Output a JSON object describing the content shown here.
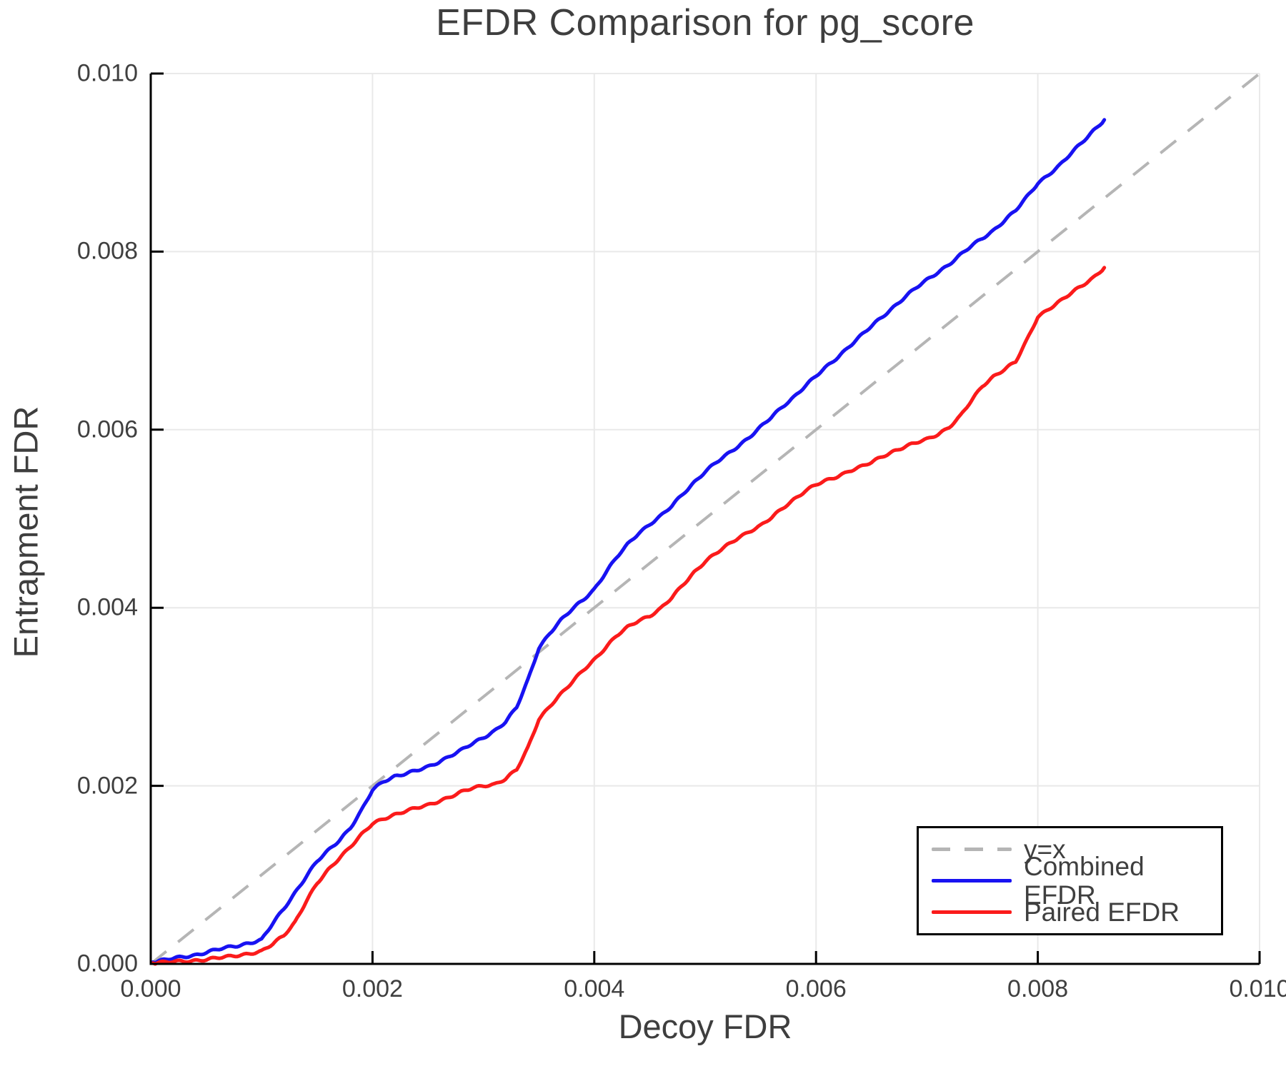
{
  "chart_data": {
    "type": "line",
    "title": "EFDR Comparison for pg_score",
    "xlabel": "Decoy FDR",
    "ylabel": "Entrapment FDR",
    "xlim": [
      0.0,
      0.01
    ],
    "ylim": [
      0.0,
      0.01
    ],
    "grid": true,
    "tick_direction": "in",
    "x_ticks": {
      "values": [
        0.0,
        0.002,
        0.004,
        0.006,
        0.008,
        0.01
      ],
      "labels": [
        "0.000",
        "0.002",
        "0.004",
        "0.006",
        "0.008",
        "0.010"
      ]
    },
    "y_ticks": {
      "values": [
        0.0,
        0.002,
        0.004,
        0.006,
        0.008,
        0.01
      ],
      "labels": [
        "0.000",
        "0.002",
        "0.004",
        "0.006",
        "0.008",
        "0.010"
      ]
    },
    "colors": {
      "diagonal": "#b5b5b5",
      "combined": "#1812f2",
      "paired": "#fb1b1b",
      "grid": "#e9e9e9",
      "axis": "#000000",
      "text": "#3f3f3f"
    },
    "legend": {
      "position": "lower right",
      "entries": [
        {
          "label": "y=x",
          "color": "#b5b5b5",
          "dashed": true
        },
        {
          "label": "Combined EFDR",
          "color": "#1812f2",
          "dashed": false
        },
        {
          "label": "Paired EFDR",
          "color": "#fb1b1b",
          "dashed": false
        }
      ]
    },
    "series": [
      {
        "name": "y=x",
        "style": "dashed",
        "color": "#b5b5b5",
        "points": [
          [
            0.0,
            0.0
          ],
          [
            0.01,
            0.01
          ]
        ]
      },
      {
        "name": "Combined EFDR",
        "style": "solid",
        "color": "#1812f2",
        "points": [
          [
            2e-05,
            2e-05
          ],
          [
            0.0002,
            6e-05
          ],
          [
            0.0004,
            0.0001
          ],
          [
            0.0006,
            0.00016
          ],
          [
            0.0008,
            0.00021
          ],
          [
            0.001,
            0.00027
          ],
          [
            0.0011,
            0.00045
          ],
          [
            0.0012,
            0.00062
          ],
          [
            0.0013,
            0.0008
          ],
          [
            0.0014,
            0.00098
          ],
          [
            0.0015,
            0.00115
          ],
          [
            0.0016,
            0.00127
          ],
          [
            0.0017,
            0.00139
          ],
          [
            0.0018,
            0.00153
          ],
          [
            0.0019,
            0.00172
          ],
          [
            0.002,
            0.00195
          ],
          [
            0.0021,
            0.00205
          ],
          [
            0.0022,
            0.00211
          ],
          [
            0.0023,
            0.00214
          ],
          [
            0.0024,
            0.00217
          ],
          [
            0.0025,
            0.00221
          ],
          [
            0.0026,
            0.00227
          ],
          [
            0.0027,
            0.00234
          ],
          [
            0.0028,
            0.0024
          ],
          [
            0.0029,
            0.00247
          ],
          [
            0.003,
            0.00254
          ],
          [
            0.0031,
            0.00262
          ],
          [
            0.0032,
            0.00272
          ],
          [
            0.0033,
            0.00288
          ],
          [
            0.0034,
            0.00318
          ],
          [
            0.0035,
            0.00355
          ],
          [
            0.0036,
            0.00372
          ],
          [
            0.0037,
            0.00386
          ],
          [
            0.0038,
            0.00398
          ],
          [
            0.0039,
            0.00409
          ],
          [
            0.004,
            0.00421
          ],
          [
            0.0041,
            0.00439
          ],
          [
            0.0042,
            0.00456
          ],
          [
            0.0043,
            0.00471
          ],
          [
            0.0044,
            0.00484
          ],
          [
            0.0045,
            0.00494
          ],
          [
            0.0046,
            0.00503
          ],
          [
            0.0047,
            0.00514
          ],
          [
            0.0048,
            0.00528
          ],
          [
            0.0049,
            0.00541
          ],
          [
            0.005,
            0.00553
          ],
          [
            0.0051,
            0.00563
          ],
          [
            0.0052,
            0.00572
          ],
          [
            0.0053,
            0.00582
          ],
          [
            0.0054,
            0.00592
          ],
          [
            0.0055,
            0.00603
          ],
          [
            0.0056,
            0.00614
          ],
          [
            0.0057,
            0.00626
          ],
          [
            0.0058,
            0.00637
          ],
          [
            0.0059,
            0.00649
          ],
          [
            0.006,
            0.0066
          ],
          [
            0.0061,
            0.00671
          ],
          [
            0.0062,
            0.00682
          ],
          [
            0.0063,
            0.00694
          ],
          [
            0.0064,
            0.00705
          ],
          [
            0.0065,
            0.00716
          ],
          [
            0.0066,
            0.00727
          ],
          [
            0.0067,
            0.00738
          ],
          [
            0.0068,
            0.00749
          ],
          [
            0.0069,
            0.00759
          ],
          [
            0.007,
            0.00768
          ],
          [
            0.0071,
            0.00777
          ],
          [
            0.0072,
            0.00786
          ],
          [
            0.0073,
            0.00796
          ],
          [
            0.0074,
            0.00806
          ],
          [
            0.0075,
            0.00815
          ],
          [
            0.0076,
            0.00824
          ],
          [
            0.0077,
            0.00835
          ],
          [
            0.0078,
            0.00846
          ],
          [
            0.0079,
            0.00861
          ],
          [
            0.008,
            0.00877
          ],
          [
            0.0081,
            0.00887
          ],
          [
            0.0082,
            0.00897
          ],
          [
            0.0083,
            0.0091
          ],
          [
            0.0084,
            0.00923
          ],
          [
            0.0085,
            0.00936
          ],
          [
            0.0086,
            0.00948
          ]
        ]
      },
      {
        "name": "Paired EFDR",
        "style": "solid",
        "color": "#fb1b1b",
        "points": [
          [
            2e-05,
            1e-05
          ],
          [
            0.0003,
            3e-05
          ],
          [
            0.0005,
            5e-05
          ],
          [
            0.0007,
            8e-05
          ],
          [
            0.0009,
            0.00012
          ],
          [
            0.001,
            0.00014
          ],
          [
            0.0011,
            0.00022
          ],
          [
            0.0012,
            0.00032
          ],
          [
            0.0013,
            0.00047
          ],
          [
            0.0014,
            0.0007
          ],
          [
            0.0015,
            0.0009
          ],
          [
            0.0016,
            0.00105
          ],
          [
            0.0017,
            0.00119
          ],
          [
            0.0018,
            0.00132
          ],
          [
            0.0019,
            0.00145
          ],
          [
            0.002,
            0.00157
          ],
          [
            0.0021,
            0.00163
          ],
          [
            0.0022,
            0.00168
          ],
          [
            0.0023,
            0.00172
          ],
          [
            0.0024,
            0.00175
          ],
          [
            0.0025,
            0.00178
          ],
          [
            0.0026,
            0.00183
          ],
          [
            0.0027,
            0.00188
          ],
          [
            0.0028,
            0.00193
          ],
          [
            0.0029,
            0.00197
          ],
          [
            0.003,
            0.002
          ],
          [
            0.0031,
            0.00202
          ],
          [
            0.0032,
            0.00208
          ],
          [
            0.0033,
            0.00218
          ],
          [
            0.0034,
            0.00242
          ],
          [
            0.0035,
            0.00275
          ],
          [
            0.0036,
            0.0029
          ],
          [
            0.0037,
            0.00303
          ],
          [
            0.0038,
            0.00316
          ],
          [
            0.0039,
            0.0033
          ],
          [
            0.004,
            0.00342
          ],
          [
            0.0041,
            0.00355
          ],
          [
            0.0042,
            0.00368
          ],
          [
            0.0043,
            0.00378
          ],
          [
            0.0044,
            0.00386
          ],
          [
            0.0045,
            0.00391
          ],
          [
            0.0046,
            0.00399
          ],
          [
            0.0047,
            0.00411
          ],
          [
            0.0048,
            0.00426
          ],
          [
            0.0049,
            0.0044
          ],
          [
            0.005,
            0.00452
          ],
          [
            0.0051,
            0.00461
          ],
          [
            0.0052,
            0.0047
          ],
          [
            0.0053,
            0.00479
          ],
          [
            0.0054,
            0.00486
          ],
          [
            0.0055,
            0.00492
          ],
          [
            0.0056,
            0.00501
          ],
          [
            0.0057,
            0.00512
          ],
          [
            0.0058,
            0.00522
          ],
          [
            0.0059,
            0.00531
          ],
          [
            0.006,
            0.00538
          ],
          [
            0.0061,
            0.00543
          ],
          [
            0.0062,
            0.00548
          ],
          [
            0.0063,
            0.00554
          ],
          [
            0.0064,
            0.00558
          ],
          [
            0.0065,
            0.00563
          ],
          [
            0.0066,
            0.0057
          ],
          [
            0.0067,
            0.00576
          ],
          [
            0.0068,
            0.00581
          ],
          [
            0.0069,
            0.00585
          ],
          [
            0.007,
            0.00589
          ],
          [
            0.0071,
            0.00595
          ],
          [
            0.0072,
            0.00603
          ],
          [
            0.0073,
            0.00615
          ],
          [
            0.0074,
            0.00632
          ],
          [
            0.0075,
            0.00649
          ],
          [
            0.0076,
            0.0066
          ],
          [
            0.0077,
            0.00668
          ],
          [
            0.0078,
            0.00676
          ],
          [
            0.0079,
            0.007
          ],
          [
            0.008,
            0.00727
          ],
          [
            0.0081,
            0.00736
          ],
          [
            0.0082,
            0.00744
          ],
          [
            0.0083,
            0.00753
          ],
          [
            0.0084,
            0.00762
          ],
          [
            0.0085,
            0.00771
          ],
          [
            0.0086,
            0.00782
          ]
        ]
      }
    ]
  }
}
